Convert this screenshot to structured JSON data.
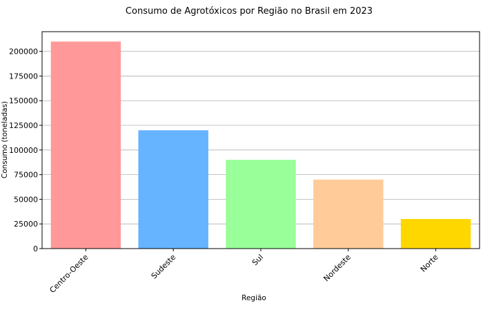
{
  "chart_data": {
    "type": "bar",
    "title": "Consumo de Agrotóxicos por Região no Brasil em 2023",
    "xlabel": "Região",
    "ylabel": "Consumo (toneladas)",
    "categories": [
      "Centro-Oeste",
      "Sudeste",
      "Sul",
      "Nordeste",
      "Norte"
    ],
    "values": [
      210000,
      120000,
      90000,
      70000,
      30000
    ],
    "colors": [
      "#ff9999",
      "#66b3ff",
      "#99ff99",
      "#ffcc99",
      "#ffd700"
    ],
    "ylim": [
      0,
      220000
    ],
    "yticks": [
      0,
      25000,
      50000,
      75000,
      100000,
      125000,
      150000,
      175000,
      200000
    ],
    "grid": "y",
    "legend": "none"
  }
}
